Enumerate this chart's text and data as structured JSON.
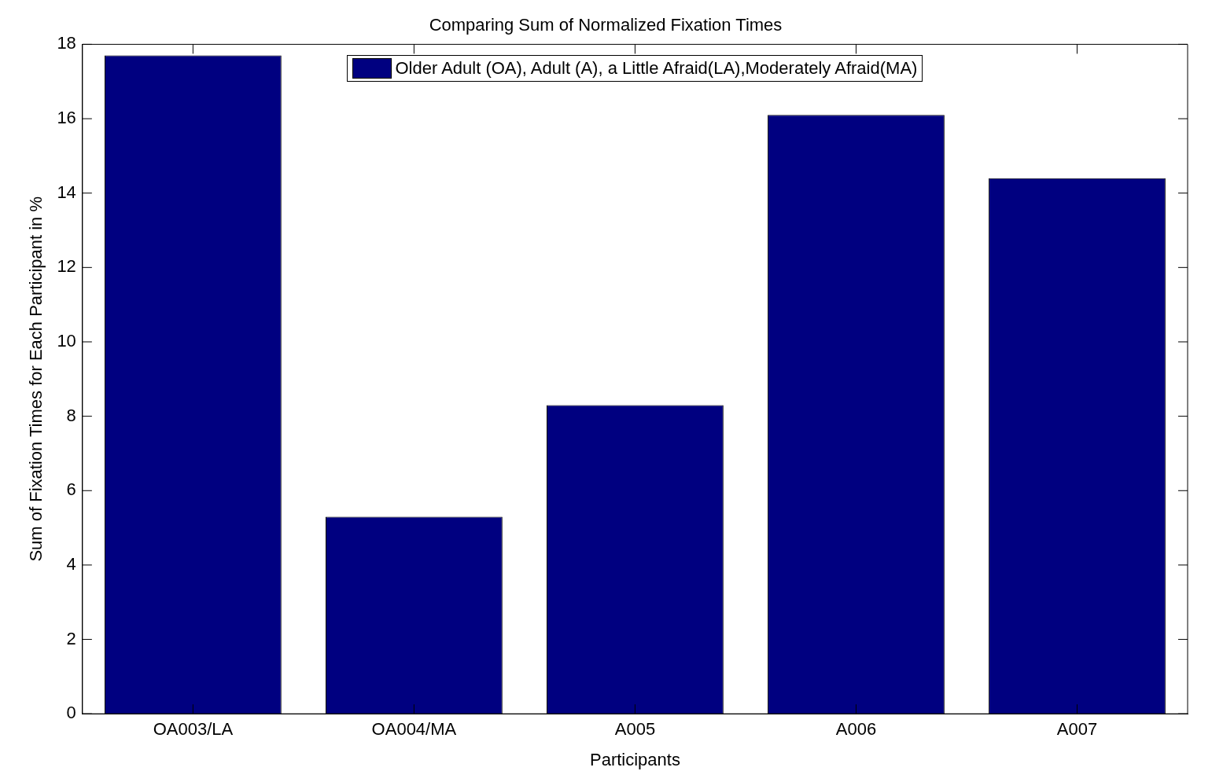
{
  "chart_data": {
    "type": "bar",
    "title": "Comparing Sum of Normalized Fixation Times",
    "xlabel": "Participants",
    "ylabel": "Sum of Fixation Times for Each Participant in %",
    "categories": [
      "OA003/LA",
      "OA004/MA",
      "A005",
      "A006",
      "A007"
    ],
    "series": [
      {
        "name": "Older Adult (OA), Adult (A), a Little Afraid(LA),Moderately Afraid(MA)",
        "color": "#000080",
        "values": [
          17.7,
          5.3,
          8.3,
          16.1,
          14.4
        ]
      }
    ],
    "ylim": [
      0,
      18
    ],
    "yticks": [
      0,
      2,
      4,
      6,
      8,
      10,
      12,
      14,
      16,
      18
    ],
    "grid": false,
    "legend": "top"
  }
}
